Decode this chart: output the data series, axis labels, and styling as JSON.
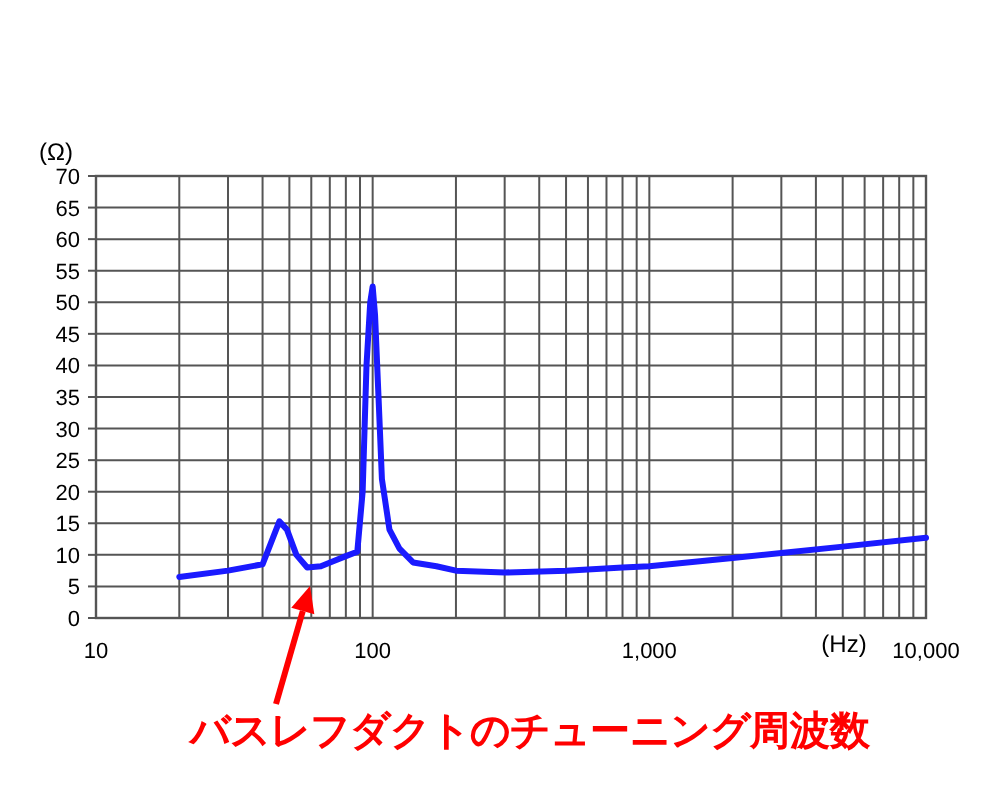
{
  "chart_data": {
    "type": "line",
    "xlabel": "(Hz)",
    "ylabel": "(Ω)",
    "log": "x",
    "grid": true,
    "marker": "none",
    "line_style": "solid",
    "xlim": [
      10,
      10000
    ],
    "ylim": [
      0,
      70
    ],
    "xticks": [
      10,
      100,
      {
        "value": 1000,
        "label": "1,000"
      },
      {
        "value": 10000,
        "label": "10,000"
      }
    ],
    "yticks": [
      0,
      5,
      10,
      15,
      20,
      25,
      30,
      35,
      40,
      45,
      50,
      55,
      60,
      65,
      70
    ],
    "series": [
      {
        "color": "#1a1aff",
        "x": [
          20,
          30,
          40,
          43,
          46,
          49,
          53,
          58,
          65,
          72,
          80,
          88,
          92,
          95,
          98,
          100,
          102,
          105,
          108,
          115,
          125,
          140,
          170,
          200,
          300,
          500,
          800,
          1000,
          2000,
          3000,
          5000,
          10000
        ],
        "values": [
          6.5,
          7.5,
          8.5,
          12,
          15.3,
          14,
          10,
          8,
          8.2,
          9,
          9.8,
          10.5,
          20,
          40,
          50,
          52.5,
          48,
          35,
          22,
          14,
          11,
          8.8,
          8.2,
          7.5,
          7.2,
          7.5,
          8,
          8.2,
          9.5,
          10.3,
          11.3,
          12.7
        ]
      }
    ],
    "annotations": [
      "バスレフダクトのチューニング周波数"
    ]
  }
}
